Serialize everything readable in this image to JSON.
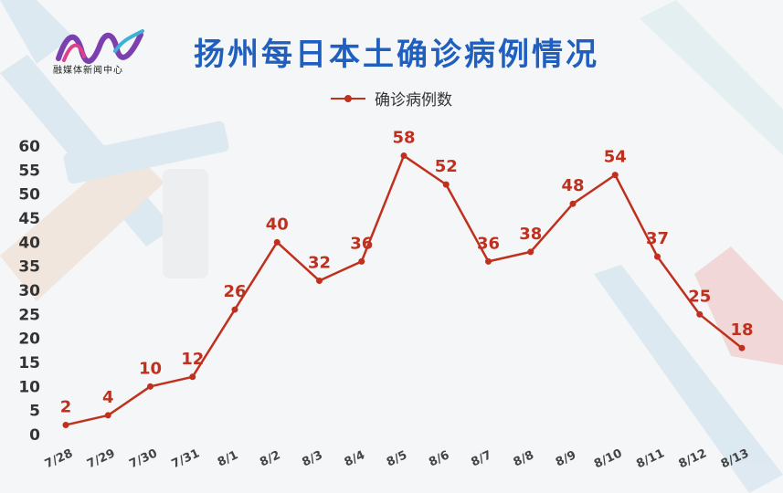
{
  "header": {
    "title": "扬州每日本土确诊病例情况",
    "logo_text": "融媒体新闻中心"
  },
  "colors": {
    "title": "#1f5fc0",
    "series": "#c0301e",
    "axis_text": "#333333"
  },
  "chart_data": {
    "type": "line",
    "title": "扬州每日本土确诊病例情况",
    "categories": [
      "7/28",
      "7/29",
      "7/30",
      "7/31",
      "8/1",
      "8/2",
      "8/3",
      "8/4",
      "8/5",
      "8/6",
      "8/7",
      "8/8",
      "8/9",
      "8/10",
      "8/11",
      "8/12",
      "8/13"
    ],
    "series": [
      {
        "name": "确诊病例数",
        "values": [
          2,
          4,
          10,
          12,
          26,
          40,
          32,
          36,
          58,
          52,
          36,
          38,
          48,
          54,
          37,
          25,
          18
        ]
      }
    ],
    "ylim": [
      0,
      60
    ],
    "yticks": [
      0,
      5,
      10,
      15,
      20,
      25,
      30,
      35,
      40,
      45,
      50,
      55,
      60
    ],
    "grid": false,
    "legend_position": "top-center",
    "data_labels": true
  }
}
